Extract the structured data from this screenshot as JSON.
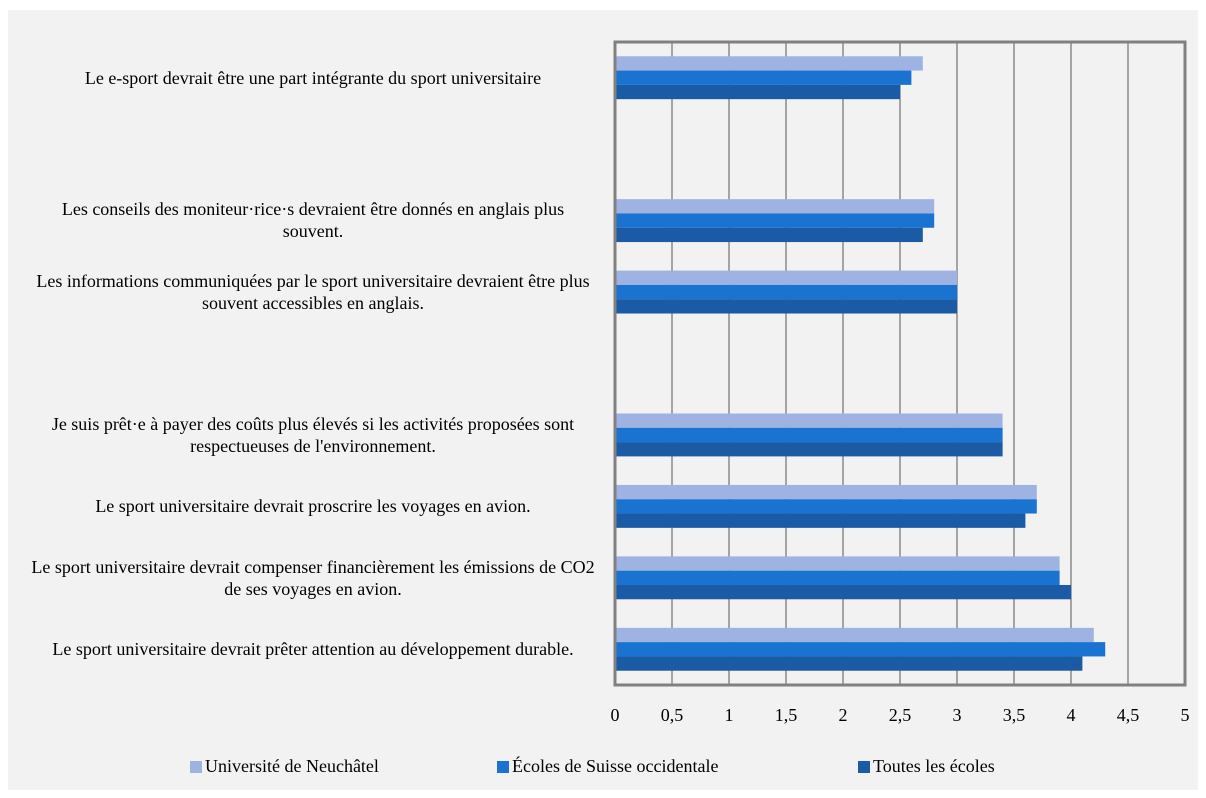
{
  "chart_data": {
    "type": "barh",
    "categories": [
      "Le e-sport devrait être une part intégrante du sport universitaire",
      null,
      "Les conseils des moniteur·rice·s devraient être donnés en anglais plus souvent.",
      "Les informations communiquées par le sport universitaire devraient être plus souvent accessibles en anglais.",
      null,
      "Je suis prêt·e à payer des coûts plus élevés si les activités proposées sont respectueuses de l'environnement.",
      "Le sport universitaire devrait proscrire les voyages en avion.",
      "Le sport universitaire devrait compenser financièrement les émissions de CO2 de ses voyages en avion.",
      "Le sport universitaire devrait prêter attention au développement durable."
    ],
    "series": [
      {
        "name": "Université de Neuchâtel",
        "color": "#9eb3e2",
        "values": [
          2.7,
          null,
          2.8,
          3,
          null,
          3.4,
          3.7,
          3.9,
          4.2
        ]
      },
      {
        "name": "Écoles de Suisse occidentale",
        "color": "#1a72d1",
        "values": [
          2.6,
          null,
          2.8,
          3,
          null,
          3.4,
          3.7,
          3.9,
          4.3
        ]
      },
      {
        "name": "Toutes les écoles",
        "color": "#1b5aa4",
        "values": [
          2.5,
          null,
          2.7,
          3,
          null,
          3.4,
          3.6,
          4.0,
          4.1
        ]
      }
    ],
    "xlim": [
      0,
      5
    ],
    "xticks": [
      0,
      {
        "value": 0.5,
        "label": "0,5"
      },
      1,
      {
        "value": 1.5,
        "label": "1,5"
      },
      2,
      {
        "value": 2.5,
        "label": "2,5"
      },
      3,
      {
        "value": 3.5,
        "label": "3,5"
      },
      4,
      {
        "value": 4.5,
        "label": "4,5"
      },
      5
    ],
    "grid": true,
    "legend": "bottom"
  }
}
